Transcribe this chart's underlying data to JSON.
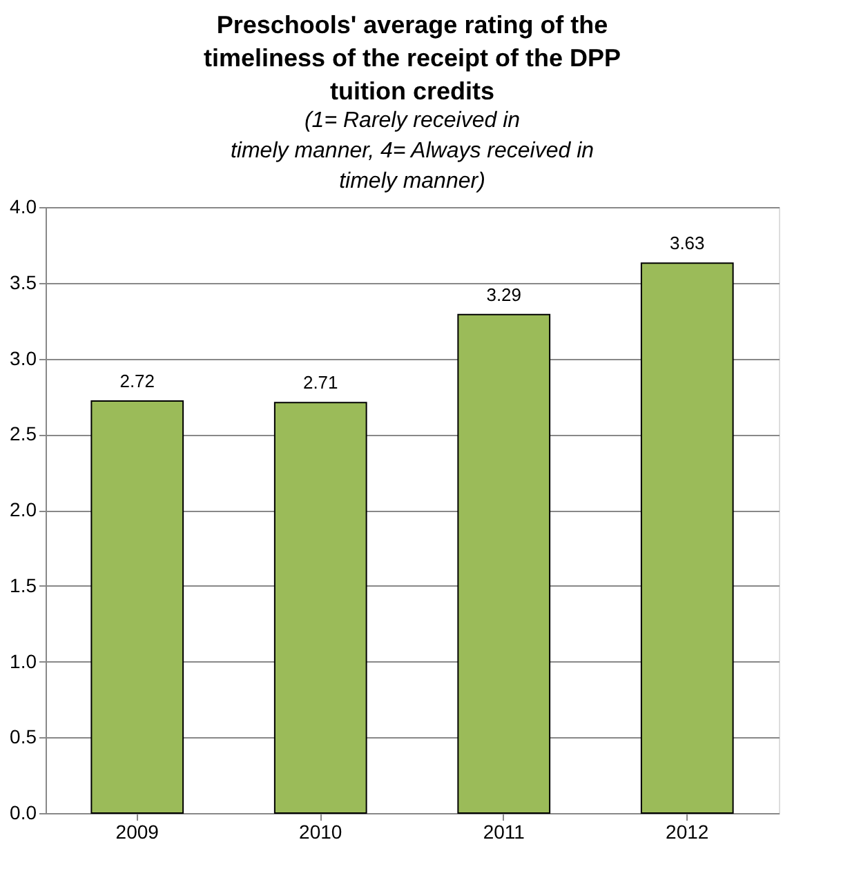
{
  "chart_data": {
    "type": "bar",
    "title": [
      "Preschools' average rating of the",
      "timeliness of the receipt of the DPP",
      "tuition credits"
    ],
    "subtitle": [
      "(1= Rarely received in",
      "timely manner, 4= Always received in",
      "timely manner)"
    ],
    "categories": [
      "2009",
      "2010",
      "2011",
      "2012"
    ],
    "values": [
      2.72,
      2.71,
      3.29,
      3.63
    ],
    "color": "#9bbb59",
    "ylim": [
      0,
      4
    ],
    "yticks": [
      {
        "value": 0,
        "label": "0.0"
      },
      {
        "value": 0.5,
        "label": "0.5"
      },
      {
        "value": 1,
        "label": "1.0"
      },
      {
        "value": 1.5,
        "label": "1.5"
      },
      {
        "value": 2,
        "label": "2.0"
      },
      {
        "value": 2.5,
        "label": "2.5"
      },
      {
        "value": 3,
        "label": "3.0"
      },
      {
        "value": 3.5,
        "label": "3.5"
      },
      {
        "value": 4,
        "label": "4.0"
      }
    ],
    "grid": "y",
    "data_labels": true
  }
}
